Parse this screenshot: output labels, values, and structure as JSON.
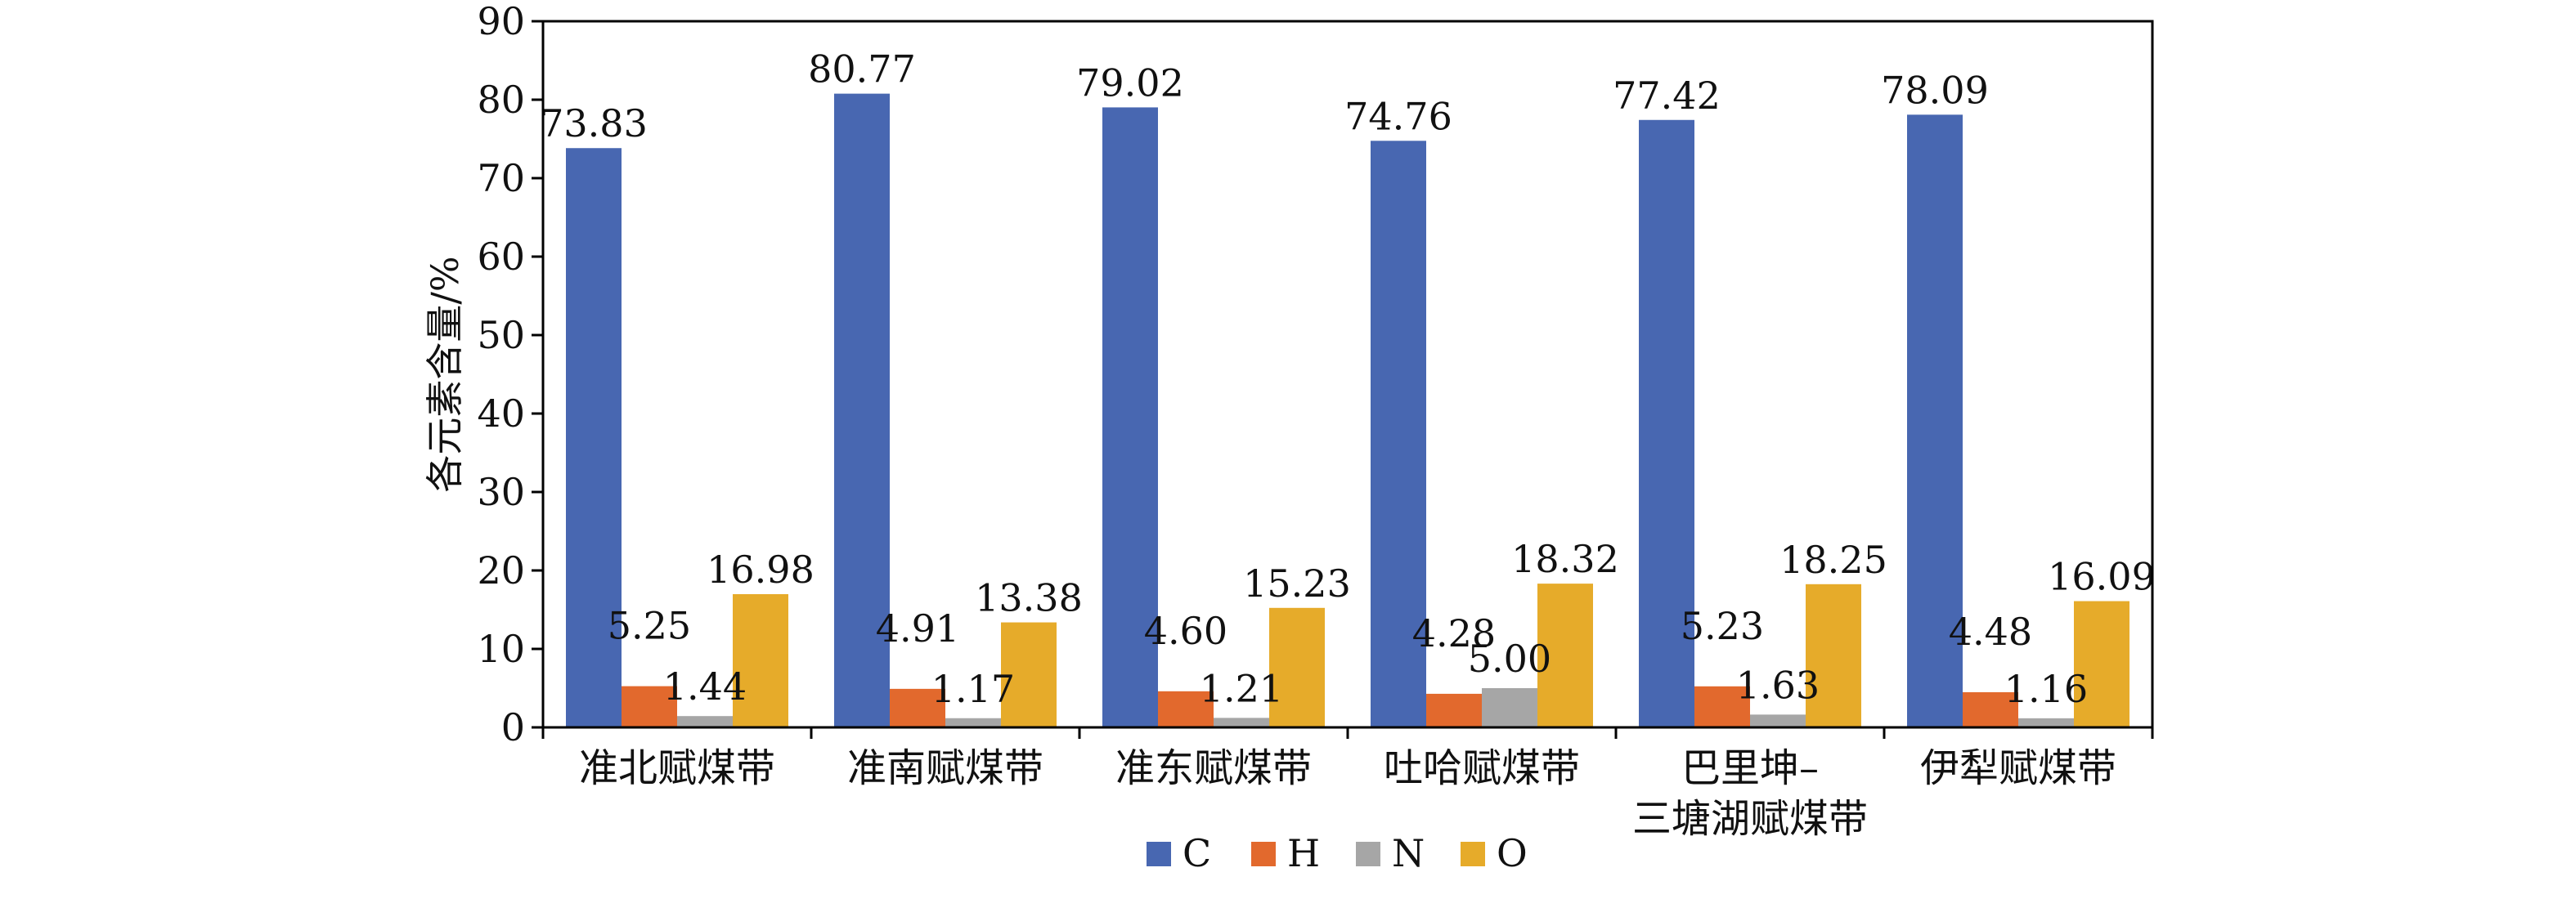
{
  "chart_data": {
    "type": "bar",
    "title": "",
    "xlabel": "",
    "ylabel": "各元素含量/%",
    "ylim": [
      0,
      90
    ],
    "yticks": [
      0,
      10,
      20,
      30,
      40,
      50,
      60,
      70,
      80,
      90
    ],
    "grid": false,
    "legend_position": "bottom",
    "categories": [
      [
        "准北赋煤带"
      ],
      [
        "准南赋煤带"
      ],
      [
        "准东赋煤带"
      ],
      [
        "吐哈赋煤带"
      ],
      [
        "巴里坤–",
        "三塘湖赋煤带"
      ],
      [
        "伊犁赋煤带"
      ]
    ],
    "series": [
      {
        "name": "C",
        "color": "#4867b1",
        "values": [
          73.83,
          80.77,
          79.02,
          74.76,
          77.42,
          78.09
        ],
        "labels": [
          "73.83",
          "80.77",
          "79.02",
          "74.76",
          "77.42",
          "78.09"
        ]
      },
      {
        "name": "H",
        "color": "#e2692d",
        "values": [
          5.25,
          4.91,
          4.6,
          4.28,
          5.23,
          4.48
        ],
        "labels": [
          "5.25",
          "4.91",
          "4.60",
          "4.28",
          "5.23",
          "4.48"
        ]
      },
      {
        "name": "N",
        "color": "#a6a6a6",
        "values": [
          1.44,
          1.17,
          1.21,
          5.0,
          1.63,
          1.16
        ],
        "labels": [
          "1.44",
          "1.17",
          "1.21",
          "5.00",
          "1.63",
          "1.16"
        ]
      },
      {
        "name": "O",
        "color": "#e6ab2a",
        "values": [
          16.98,
          13.38,
          15.23,
          18.32,
          18.25,
          16.09
        ],
        "labels": [
          "16.98",
          "13.38",
          "15.23",
          "18.32",
          "18.25",
          "16.09"
        ]
      }
    ]
  }
}
